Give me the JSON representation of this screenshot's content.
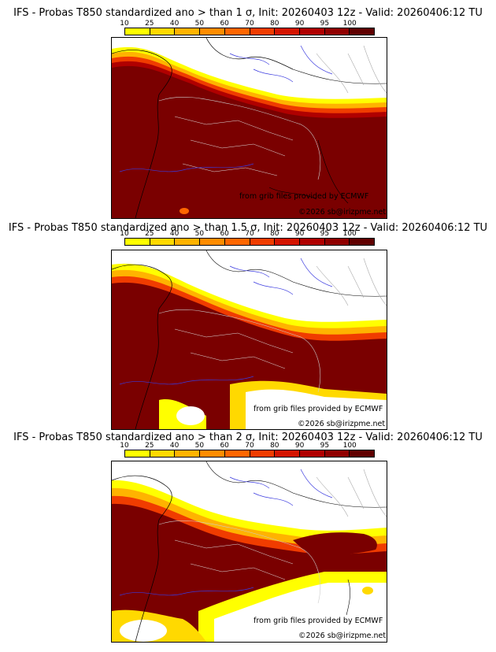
{
  "legend": {
    "ticks": [
      "10",
      "25",
      "40",
      "50",
      "60",
      "70",
      "80",
      "90",
      "95",
      "100"
    ],
    "colors": [
      "#ffff00",
      "#ffd900",
      "#ffb300",
      "#ff8c00",
      "#ff6600",
      "#f03c00",
      "#d41400",
      "#b00000",
      "#900000",
      "#600000"
    ]
  },
  "panels": [
    {
      "title": "IFS - Probas T850  standardized ano > than 1 σ, Init: 20260403 12z - Valid: 20260406:12 TU",
      "credit": "from grib files provided by ECMWF",
      "copyright": "©2026 sb@irizpme.net"
    },
    {
      "title": "IFS - Probas T850  standardized ano > than 1.5 σ, Init: 20260403 12z - Valid: 20260406:12 TU",
      "credit": "from grib files provided by ECMWF",
      "copyright": "©2026 sb@irizpme.net"
    },
    {
      "title": "IFS - Probas T850  standardized ano > than 2 σ, Init: 20260403 12z - Valid: 20260406:12 TU",
      "credit": "from grib files provided by ECMWF",
      "copyright": "©2026 sb@irizpme.net"
    }
  ]
}
